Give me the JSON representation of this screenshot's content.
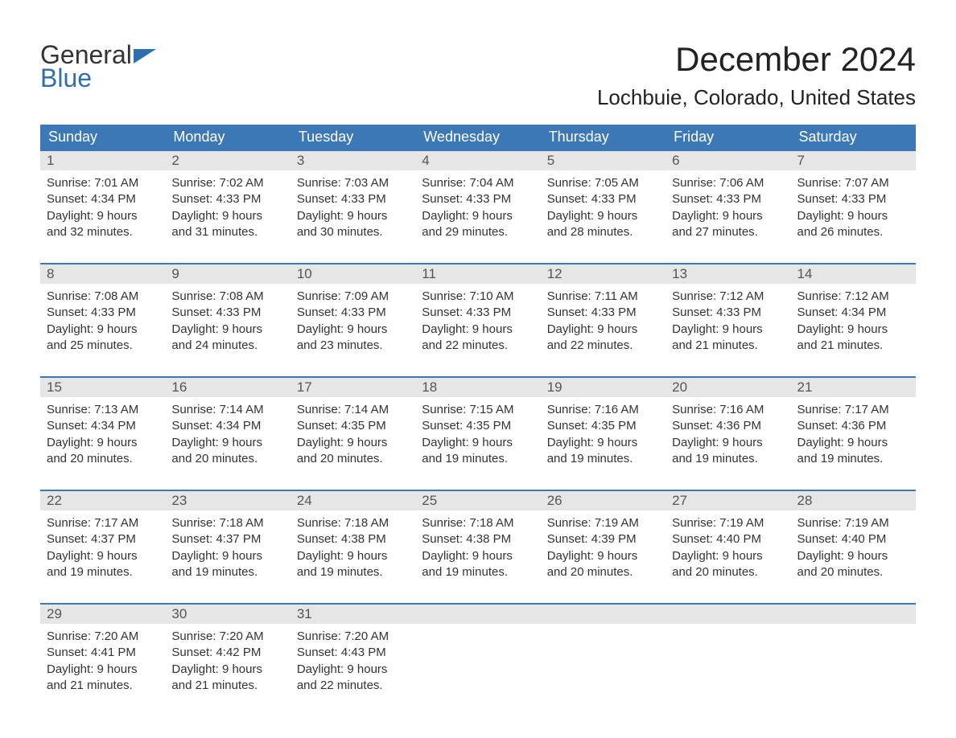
{
  "logo": {
    "text_general": "General",
    "text_blue": "Blue",
    "icon_color": "#2f6fad"
  },
  "title": "December 2024",
  "location": "Lochbuie, Colorado, United States",
  "day_headers": [
    "Sunday",
    "Monday",
    "Tuesday",
    "Wednesday",
    "Thursday",
    "Friday",
    "Saturday"
  ],
  "colors": {
    "header_bg": "#3b78b5",
    "header_text": "#ffffff",
    "week_border": "#3b78b5",
    "daynum_bg": "#e6e6e6",
    "body_text": "#333333",
    "background": "#ffffff"
  },
  "typography": {
    "title_fontsize": 42,
    "location_fontsize": 26,
    "day_header_fontsize": 18,
    "daynum_fontsize": 17,
    "detail_fontsize": 15
  },
  "weeks": [
    [
      {
        "num": "1",
        "sunrise": "7:01 AM",
        "sunset": "4:34 PM",
        "daylight_h": "9",
        "daylight_m": "32"
      },
      {
        "num": "2",
        "sunrise": "7:02 AM",
        "sunset": "4:33 PM",
        "daylight_h": "9",
        "daylight_m": "31"
      },
      {
        "num": "3",
        "sunrise": "7:03 AM",
        "sunset": "4:33 PM",
        "daylight_h": "9",
        "daylight_m": "30"
      },
      {
        "num": "4",
        "sunrise": "7:04 AM",
        "sunset": "4:33 PM",
        "daylight_h": "9",
        "daylight_m": "29"
      },
      {
        "num": "5",
        "sunrise": "7:05 AM",
        "sunset": "4:33 PM",
        "daylight_h": "9",
        "daylight_m": "28"
      },
      {
        "num": "6",
        "sunrise": "7:06 AM",
        "sunset": "4:33 PM",
        "daylight_h": "9",
        "daylight_m": "27"
      },
      {
        "num": "7",
        "sunrise": "7:07 AM",
        "sunset": "4:33 PM",
        "daylight_h": "9",
        "daylight_m": "26"
      }
    ],
    [
      {
        "num": "8",
        "sunrise": "7:08 AM",
        "sunset": "4:33 PM",
        "daylight_h": "9",
        "daylight_m": "25"
      },
      {
        "num": "9",
        "sunrise": "7:08 AM",
        "sunset": "4:33 PM",
        "daylight_h": "9",
        "daylight_m": "24"
      },
      {
        "num": "10",
        "sunrise": "7:09 AM",
        "sunset": "4:33 PM",
        "daylight_h": "9",
        "daylight_m": "23"
      },
      {
        "num": "11",
        "sunrise": "7:10 AM",
        "sunset": "4:33 PM",
        "daylight_h": "9",
        "daylight_m": "22"
      },
      {
        "num": "12",
        "sunrise": "7:11 AM",
        "sunset": "4:33 PM",
        "daylight_h": "9",
        "daylight_m": "22"
      },
      {
        "num": "13",
        "sunrise": "7:12 AM",
        "sunset": "4:33 PM",
        "daylight_h": "9",
        "daylight_m": "21"
      },
      {
        "num": "14",
        "sunrise": "7:12 AM",
        "sunset": "4:34 PM",
        "daylight_h": "9",
        "daylight_m": "21"
      }
    ],
    [
      {
        "num": "15",
        "sunrise": "7:13 AM",
        "sunset": "4:34 PM",
        "daylight_h": "9",
        "daylight_m": "20"
      },
      {
        "num": "16",
        "sunrise": "7:14 AM",
        "sunset": "4:34 PM",
        "daylight_h": "9",
        "daylight_m": "20"
      },
      {
        "num": "17",
        "sunrise": "7:14 AM",
        "sunset": "4:35 PM",
        "daylight_h": "9",
        "daylight_m": "20"
      },
      {
        "num": "18",
        "sunrise": "7:15 AM",
        "sunset": "4:35 PM",
        "daylight_h": "9",
        "daylight_m": "19"
      },
      {
        "num": "19",
        "sunrise": "7:16 AM",
        "sunset": "4:35 PM",
        "daylight_h": "9",
        "daylight_m": "19"
      },
      {
        "num": "20",
        "sunrise": "7:16 AM",
        "sunset": "4:36 PM",
        "daylight_h": "9",
        "daylight_m": "19"
      },
      {
        "num": "21",
        "sunrise": "7:17 AM",
        "sunset": "4:36 PM",
        "daylight_h": "9",
        "daylight_m": "19"
      }
    ],
    [
      {
        "num": "22",
        "sunrise": "7:17 AM",
        "sunset": "4:37 PM",
        "daylight_h": "9",
        "daylight_m": "19"
      },
      {
        "num": "23",
        "sunrise": "7:18 AM",
        "sunset": "4:37 PM",
        "daylight_h": "9",
        "daylight_m": "19"
      },
      {
        "num": "24",
        "sunrise": "7:18 AM",
        "sunset": "4:38 PM",
        "daylight_h": "9",
        "daylight_m": "19"
      },
      {
        "num": "25",
        "sunrise": "7:18 AM",
        "sunset": "4:38 PM",
        "daylight_h": "9",
        "daylight_m": "19"
      },
      {
        "num": "26",
        "sunrise": "7:19 AM",
        "sunset": "4:39 PM",
        "daylight_h": "9",
        "daylight_m": "20"
      },
      {
        "num": "27",
        "sunrise": "7:19 AM",
        "sunset": "4:40 PM",
        "daylight_h": "9",
        "daylight_m": "20"
      },
      {
        "num": "28",
        "sunrise": "7:19 AM",
        "sunset": "4:40 PM",
        "daylight_h": "9",
        "daylight_m": "20"
      }
    ],
    [
      {
        "num": "29",
        "sunrise": "7:20 AM",
        "sunset": "4:41 PM",
        "daylight_h": "9",
        "daylight_m": "21"
      },
      {
        "num": "30",
        "sunrise": "7:20 AM",
        "sunset": "4:42 PM",
        "daylight_h": "9",
        "daylight_m": "21"
      },
      {
        "num": "31",
        "sunrise": "7:20 AM",
        "sunset": "4:43 PM",
        "daylight_h": "9",
        "daylight_m": "22"
      },
      {
        "empty": true
      },
      {
        "empty": true
      },
      {
        "empty": true
      },
      {
        "empty": true
      }
    ]
  ],
  "labels": {
    "sunrise_prefix": "Sunrise: ",
    "sunset_prefix": "Sunset: ",
    "daylight_prefix": "Daylight: ",
    "hours_word": " hours",
    "and_word": "and ",
    "minutes_word": " minutes."
  }
}
